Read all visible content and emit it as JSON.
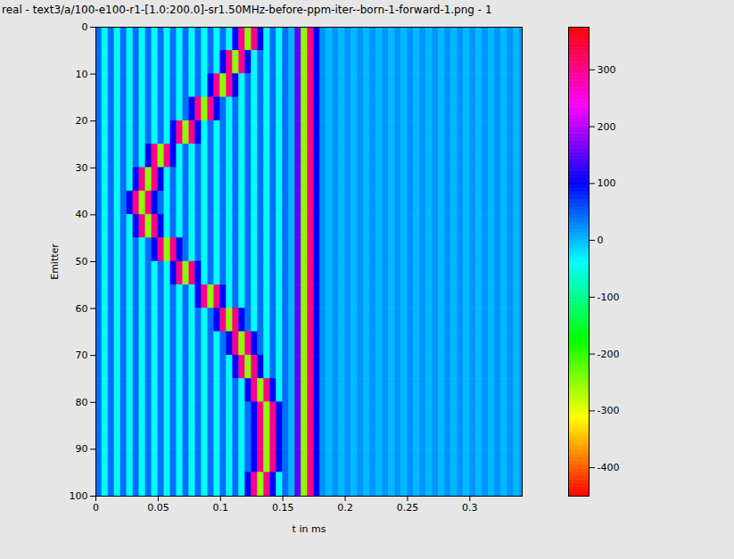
{
  "chart_data": {
    "type": "heatmap",
    "title": "real - text3/a/100-e100-r1-[1.0:200.0]-sr1.50MHz-before-ppm-iter--born-1-forward-1.png - 1",
    "xlabel": "t in ms",
    "ylabel": "Emitter",
    "xlim": [
      0,
      0.342
    ],
    "ylim": [
      0,
      100
    ],
    "xticks": [
      0,
      0.05,
      0.1,
      0.15,
      0.2,
      0.25,
      0.3
    ],
    "yticks": [
      0,
      10,
      20,
      30,
      40,
      50,
      60,
      70,
      80,
      90,
      100
    ],
    "x": [
      0,
      0.005,
      0.01,
      0.015,
      0.02,
      0.025,
      0.03,
      0.035,
      0.04,
      0.045,
      0.05,
      0.055,
      0.06,
      0.065,
      0.07,
      0.075,
      0.08,
      0.085,
      0.09,
      0.095,
      0.1,
      0.105,
      0.11,
      0.115,
      0.12,
      0.125,
      0.13,
      0.135,
      0.14,
      0.145,
      0.15,
      0.155,
      0.16,
      0.165,
      0.17,
      0.175,
      0.18,
      0.185,
      0.19,
      0.195,
      0.2,
      0.205,
      0.21,
      0.215,
      0.22,
      0.225,
      0.23,
      0.235,
      0.24,
      0.245,
      0.25,
      0.255,
      0.26,
      0.265,
      0.27,
      0.275,
      0.28,
      0.285,
      0.29,
      0.295,
      0.3,
      0.305,
      0.31,
      0.315,
      0.32,
      0.325,
      0.33,
      0.335,
      0.34
    ],
    "y": [
      0,
      5,
      10,
      15,
      20,
      25,
      30,
      35,
      40,
      45,
      50,
      55,
      60,
      65,
      70,
      75,
      80,
      85,
      90,
      95
    ],
    "values": [
      [
        40,
        -40,
        40,
        -40,
        40,
        -40,
        40,
        -40,
        40,
        -40,
        40,
        -40,
        40,
        -40,
        40,
        -40,
        40,
        -40,
        40,
        -40,
        40,
        -40,
        100,
        300,
        -250,
        300,
        100,
        -40,
        40,
        -40,
        40,
        0,
        150,
        -250,
        300,
        100,
        20,
        0,
        20,
        0,
        20,
        0,
        20,
        0,
        20,
        0,
        20,
        0,
        20,
        0,
        20,
        0,
        20,
        0,
        20,
        0,
        20,
        0,
        20,
        0,
        20,
        0,
        20,
        0,
        20,
        0,
        20,
        0,
        20
      ],
      [
        40,
        -40,
        40,
        -40,
        40,
        -40,
        40,
        -40,
        40,
        -40,
        40,
        -40,
        40,
        -40,
        40,
        -40,
        40,
        -40,
        40,
        -40,
        100,
        300,
        -250,
        300,
        100,
        -40,
        40,
        -40,
        40,
        -40,
        40,
        0,
        150,
        -250,
        300,
        100,
        20,
        0,
        20,
        0,
        20,
        0,
        20,
        0,
        20,
        0,
        20,
        0,
        20,
        0,
        20,
        0,
        20,
        0,
        20,
        0,
        20,
        0,
        20,
        0,
        20,
        0,
        20,
        0,
        20,
        0,
        20,
        0,
        20
      ],
      [
        40,
        -40,
        40,
        -40,
        40,
        -40,
        40,
        -40,
        40,
        -40,
        40,
        -40,
        40,
        -40,
        40,
        -40,
        40,
        -40,
        100,
        300,
        -250,
        300,
        100,
        -40,
        40,
        -40,
        40,
        -40,
        40,
        -40,
        40,
        0,
        150,
        -250,
        300,
        100,
        20,
        0,
        20,
        0,
        20,
        0,
        20,
        0,
        20,
        0,
        20,
        0,
        20,
        0,
        20,
        0,
        20,
        0,
        20,
        0,
        20,
        0,
        20,
        0,
        20,
        0,
        20,
        0,
        20,
        0,
        20,
        0,
        20
      ],
      [
        40,
        -40,
        40,
        -40,
        40,
        -40,
        40,
        -40,
        40,
        -40,
        40,
        -40,
        40,
        -40,
        40,
        100,
        300,
        -250,
        300,
        100,
        40,
        -40,
        40,
        -40,
        40,
        -40,
        40,
        -40,
        40,
        -40,
        40,
        0,
        150,
        -250,
        300,
        100,
        20,
        0,
        20,
        0,
        20,
        0,
        20,
        0,
        20,
        0,
        20,
        0,
        20,
        0,
        20,
        0,
        20,
        0,
        20,
        0,
        20,
        0,
        20,
        0,
        20,
        0,
        20,
        0,
        20,
        0,
        20,
        0,
        20
      ],
      [
        40,
        -40,
        40,
        -40,
        40,
        -40,
        40,
        -40,
        40,
        -40,
        40,
        -40,
        100,
        300,
        -250,
        300,
        100,
        -40,
        40,
        -40,
        40,
        -40,
        40,
        -40,
        40,
        -40,
        40,
        -40,
        40,
        -40,
        40,
        0,
        150,
        -250,
        300,
        100,
        20,
        0,
        20,
        0,
        20,
        0,
        20,
        0,
        20,
        0,
        20,
        0,
        20,
        0,
        20,
        0,
        20,
        0,
        20,
        0,
        20,
        0,
        20,
        0,
        20,
        0,
        20,
        0,
        20,
        0,
        20,
        0,
        20
      ],
      [
        40,
        -40,
        40,
        -40,
        40,
        -40,
        40,
        -40,
        100,
        300,
        -250,
        300,
        100,
        -40,
        40,
        -40,
        40,
        -40,
        40,
        -40,
        40,
        -40,
        40,
        -40,
        40,
        -40,
        40,
        -40,
        40,
        -40,
        40,
        0,
        150,
        -250,
        300,
        100,
        20,
        0,
        20,
        0,
        20,
        0,
        20,
        0,
        20,
        0,
        20,
        0,
        20,
        0,
        20,
        0,
        20,
        0,
        20,
        0,
        20,
        0,
        20,
        0,
        20,
        0,
        20,
        0,
        20,
        0,
        20,
        0,
        20
      ],
      [
        40,
        -40,
        40,
        -40,
        40,
        -40,
        100,
        300,
        -250,
        300,
        100,
        -40,
        40,
        -40,
        40,
        -40,
        40,
        -40,
        40,
        -40,
        40,
        -40,
        40,
        -40,
        40,
        -40,
        40,
        -40,
        40,
        -40,
        40,
        0,
        150,
        -250,
        300,
        100,
        20,
        0,
        20,
        0,
        20,
        0,
        20,
        0,
        20,
        0,
        20,
        0,
        20,
        0,
        20,
        0,
        20,
        0,
        20,
        0,
        20,
        0,
        20,
        0,
        20,
        0,
        20,
        0,
        20,
        0,
        20,
        0,
        20
      ],
      [
        40,
        -40,
        40,
        -40,
        40,
        100,
        300,
        -250,
        300,
        100,
        40,
        -40,
        40,
        -40,
        40,
        -40,
        40,
        -40,
        40,
        -40,
        40,
        -40,
        40,
        -40,
        40,
        -40,
        40,
        -40,
        40,
        -40,
        40,
        0,
        150,
        -250,
        300,
        100,
        20,
        0,
        20,
        0,
        20,
        0,
        20,
        0,
        20,
        0,
        20,
        0,
        20,
        0,
        20,
        0,
        20,
        0,
        20,
        0,
        20,
        0,
        20,
        0,
        20,
        0,
        20,
        0,
        20,
        0,
        20,
        0,
        20
      ],
      [
        40,
        -40,
        40,
        -40,
        40,
        -40,
        100,
        300,
        -250,
        300,
        100,
        -40,
        40,
        -40,
        40,
        -40,
        40,
        -40,
        40,
        -40,
        40,
        -40,
        40,
        -40,
        40,
        -40,
        40,
        -40,
        40,
        -40,
        40,
        0,
        150,
        -250,
        300,
        100,
        20,
        0,
        20,
        0,
        20,
        0,
        20,
        0,
        20,
        0,
        20,
        0,
        20,
        0,
        20,
        0,
        20,
        0,
        20,
        0,
        20,
        0,
        20,
        0,
        20,
        0,
        20,
        0,
        20,
        0,
        20,
        0,
        20
      ],
      [
        40,
        -40,
        40,
        -40,
        40,
        -40,
        40,
        -40,
        40,
        100,
        300,
        -250,
        300,
        100,
        40,
        -40,
        40,
        -40,
        40,
        -40,
        40,
        -40,
        40,
        -40,
        40,
        -40,
        40,
        -40,
        40,
        -40,
        40,
        0,
        150,
        -250,
        300,
        100,
        20,
        0,
        20,
        0,
        20,
        0,
        20,
        0,
        20,
        0,
        20,
        0,
        20,
        0,
        20,
        0,
        20,
        0,
        20,
        0,
        20,
        0,
        20,
        0,
        20,
        0,
        20,
        0,
        20,
        0,
        20,
        0,
        20
      ],
      [
        40,
        -40,
        40,
        -40,
        40,
        -40,
        40,
        -40,
        40,
        -40,
        40,
        -40,
        100,
        300,
        -250,
        300,
        100,
        -40,
        40,
        -40,
        40,
        -40,
        40,
        -40,
        40,
        -40,
        40,
        -40,
        40,
        -40,
        40,
        0,
        150,
        -250,
        300,
        100,
        20,
        0,
        20,
        0,
        20,
        0,
        20,
        0,
        20,
        0,
        20,
        0,
        20,
        0,
        20,
        0,
        20,
        0,
        20,
        0,
        20,
        0,
        20,
        0,
        20,
        0,
        20,
        0,
        20,
        0,
        20,
        0,
        20
      ],
      [
        40,
        -40,
        40,
        -40,
        40,
        -40,
        40,
        -40,
        40,
        -40,
        40,
        -40,
        40,
        -40,
        40,
        -40,
        100,
        300,
        -250,
        300,
        100,
        -40,
        40,
        -40,
        40,
        -40,
        40,
        -40,
        40,
        -40,
        40,
        0,
        150,
        -250,
        300,
        100,
        20,
        0,
        20,
        0,
        20,
        0,
        20,
        0,
        20,
        0,
        20,
        0,
        20,
        0,
        20,
        0,
        20,
        0,
        20,
        0,
        20,
        0,
        20,
        0,
        20,
        0,
        20,
        0,
        20,
        0,
        20,
        0,
        20
      ],
      [
        40,
        -40,
        40,
        -40,
        40,
        -40,
        40,
        -40,
        40,
        -40,
        40,
        -40,
        40,
        -40,
        40,
        -40,
        40,
        -40,
        40,
        100,
        300,
        -250,
        300,
        100,
        40,
        -40,
        40,
        -40,
        40,
        -40,
        40,
        0,
        150,
        -250,
        300,
        100,
        20,
        0,
        20,
        0,
        20,
        0,
        20,
        0,
        20,
        0,
        20,
        0,
        20,
        0,
        20,
        0,
        20,
        0,
        20,
        0,
        20,
        0,
        20,
        0,
        20,
        0,
        20,
        0,
        20,
        0,
        20,
        0,
        20
      ],
      [
        40,
        -40,
        40,
        -40,
        40,
        -40,
        40,
        -40,
        40,
        -40,
        40,
        -40,
        40,
        -40,
        40,
        -40,
        40,
        -40,
        40,
        -40,
        40,
        100,
        300,
        -250,
        300,
        100,
        40,
        -40,
        40,
        -40,
        40,
        0,
        150,
        -250,
        300,
        100,
        20,
        0,
        20,
        0,
        20,
        0,
        20,
        0,
        20,
        0,
        20,
        0,
        20,
        0,
        20,
        0,
        20,
        0,
        20,
        0,
        20,
        0,
        20,
        0,
        20,
        0,
        20,
        0,
        20,
        0,
        20,
        0,
        20
      ],
      [
        40,
        -40,
        40,
        -40,
        40,
        -40,
        40,
        -40,
        40,
        -40,
        40,
        -40,
        40,
        -40,
        40,
        -40,
        40,
        -40,
        40,
        -40,
        40,
        -40,
        100,
        300,
        -250,
        300,
        100,
        -40,
        40,
        -40,
        40,
        0,
        150,
        -250,
        300,
        100,
        20,
        0,
        20,
        0,
        20,
        0,
        20,
        0,
        20,
        0,
        20,
        0,
        20,
        0,
        20,
        0,
        20,
        0,
        20,
        0,
        20,
        0,
        20,
        0,
        20,
        0,
        20,
        0,
        20,
        0,
        20,
        0,
        20
      ],
      [
        40,
        -40,
        40,
        -40,
        40,
        -40,
        40,
        -40,
        40,
        -40,
        40,
        -40,
        40,
        -40,
        40,
        -40,
        40,
        -40,
        40,
        -40,
        40,
        -40,
        40,
        -40,
        100,
        300,
        -250,
        300,
        100,
        -40,
        40,
        0,
        150,
        -250,
        300,
        100,
        20,
        0,
        20,
        0,
        20,
        0,
        20,
        0,
        20,
        0,
        20,
        0,
        20,
        0,
        20,
        0,
        20,
        0,
        20,
        0,
        20,
        0,
        20,
        0,
        20,
        0,
        20,
        0,
        20,
        0,
        20,
        0,
        20
      ],
      [
        40,
        -40,
        40,
        -40,
        40,
        -40,
        40,
        -40,
        40,
        -40,
        40,
        -40,
        40,
        -40,
        40,
        -40,
        40,
        -40,
        40,
        -40,
        40,
        -40,
        40,
        -40,
        40,
        100,
        300,
        -250,
        300,
        100,
        40,
        0,
        150,
        -250,
        300,
        100,
        20,
        0,
        20,
        0,
        20,
        0,
        20,
        0,
        20,
        0,
        20,
        0,
        20,
        0,
        20,
        0,
        20,
        0,
        20,
        0,
        20,
        0,
        20,
        0,
        20,
        0,
        20,
        0,
        20,
        0,
        20,
        0,
        20
      ],
      [
        40,
        -40,
        40,
        -40,
        40,
        -40,
        40,
        -40,
        40,
        -40,
        40,
        -40,
        40,
        -40,
        40,
        -40,
        40,
        -40,
        40,
        -40,
        40,
        -40,
        40,
        -40,
        40,
        100,
        300,
        -250,
        300,
        100,
        40,
        0,
        150,
        -250,
        300,
        100,
        20,
        0,
        20,
        0,
        20,
        0,
        20,
        0,
        20,
        0,
        20,
        0,
        20,
        0,
        20,
        0,
        20,
        0,
        20,
        0,
        20,
        0,
        20,
        0,
        20,
        0,
        20,
        0,
        20,
        0,
        20,
        0,
        20
      ],
      [
        40,
        -40,
        40,
        -40,
        40,
        -40,
        40,
        -40,
        40,
        -40,
        40,
        -40,
        40,
        -40,
        40,
        -40,
        40,
        -40,
        40,
        -40,
        40,
        -40,
        40,
        -40,
        40,
        100,
        300,
        -250,
        300,
        100,
        40,
        0,
        150,
        -250,
        300,
        100,
        20,
        0,
        20,
        0,
        20,
        0,
        20,
        0,
        20,
        0,
        20,
        0,
        20,
        0,
        20,
        0,
        20,
        0,
        20,
        0,
        20,
        0,
        20,
        0,
        20,
        0,
        20,
        0,
        20,
        0,
        20,
        0,
        20
      ],
      [
        40,
        -40,
        40,
        -40,
        40,
        -40,
        40,
        -40,
        40,
        -40,
        40,
        -40,
        40,
        -40,
        40,
        -40,
        40,
        -40,
        40,
        -40,
        40,
        -40,
        40,
        -40,
        100,
        300,
        -250,
        300,
        100,
        -40,
        40,
        0,
        150,
        -250,
        300,
        100,
        20,
        0,
        20,
        0,
        20,
        0,
        20,
        0,
        20,
        0,
        20,
        0,
        20,
        0,
        20,
        0,
        20,
        0,
        20,
        0,
        20,
        0,
        20,
        0,
        20,
        0,
        20,
        0,
        20,
        0,
        20,
        0,
        20
      ]
    ],
    "colorbar": {
      "range": [
        -450,
        375
      ],
      "ticks": [
        -400,
        -300,
        -200,
        -100,
        0,
        100,
        200,
        300
      ]
    }
  }
}
